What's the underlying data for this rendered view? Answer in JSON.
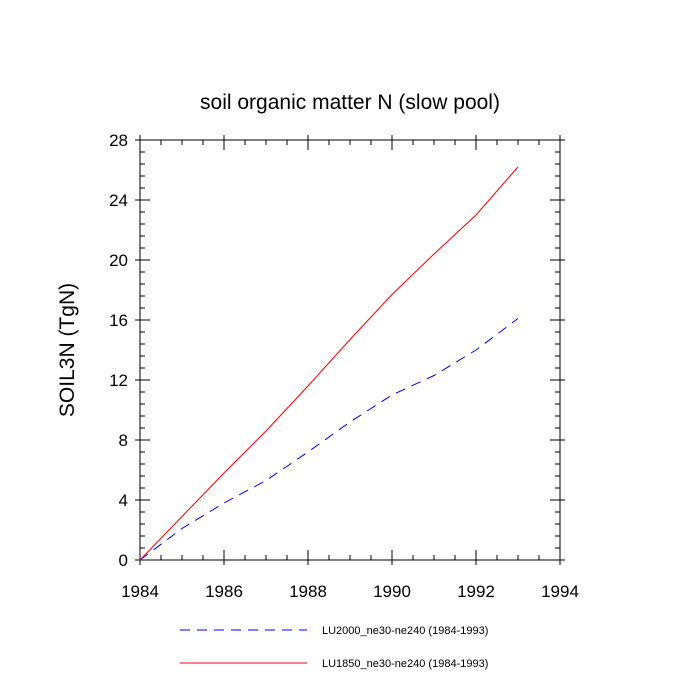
{
  "chart_data": {
    "type": "line",
    "title": "soil organic matter N (slow pool)",
    "xlabel": "",
    "ylabel": "SOIL3N  (TgN)",
    "xlim": [
      1984,
      1994
    ],
    "ylim": [
      0,
      28
    ],
    "xticks": [
      1984,
      1986,
      1988,
      1990,
      1992,
      1994
    ],
    "yticks": [
      0,
      4,
      8,
      12,
      16,
      20,
      24,
      28
    ],
    "x_minor_step": 0.5,
    "y_minor_step": 0.8,
    "legend_position": "bottom",
    "series": [
      {
        "name": "LU2000_ne30-ne240 (1984-1993)",
        "color": "#0000ff",
        "dash": "dashed",
        "x": [
          1984.0,
          1985,
          1986,
          1987,
          1988,
          1989,
          1990,
          1991,
          1992,
          1993
        ],
        "values": [
          0.0,
          2.1,
          3.8,
          5.3,
          7.2,
          9.2,
          11.0,
          12.3,
          14.0,
          16.1
        ]
      },
      {
        "name": "LU1850_ne30-ne240 (1984-1993)",
        "color": "#ff0000",
        "dash": "solid",
        "x": [
          1984.0,
          1985,
          1986,
          1987,
          1988,
          1989,
          1990,
          1991,
          1992,
          1993
        ],
        "values": [
          0.0,
          2.9,
          5.8,
          8.6,
          11.6,
          14.7,
          17.7,
          20.4,
          23.0,
          26.2
        ]
      }
    ]
  }
}
